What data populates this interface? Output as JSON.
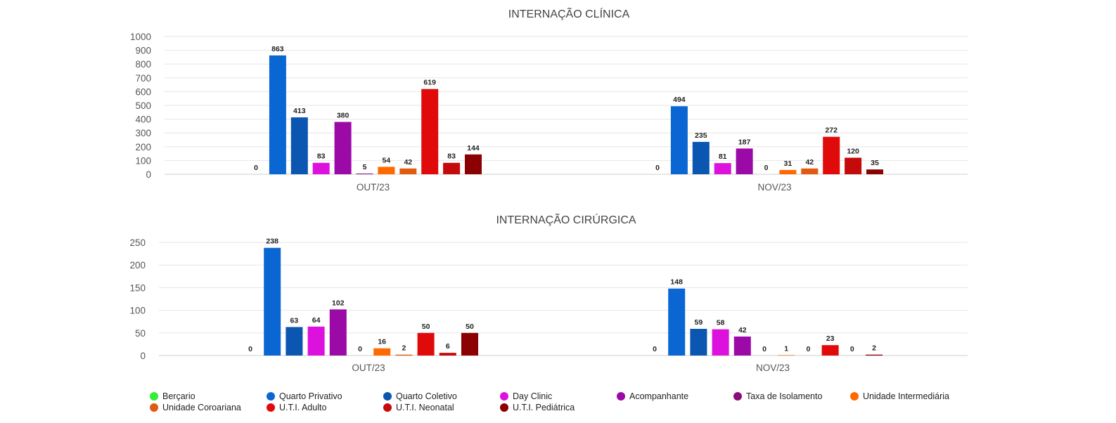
{
  "legend": [
    {
      "label": "Berçario",
      "color": "#33ee33"
    },
    {
      "label": "Quarto Privativo",
      "color": "#0a66d3"
    },
    {
      "label": "Quarto Coletivo",
      "color": "#0a56b0"
    },
    {
      "label": "Day Clinic",
      "color": "#dd11dd"
    },
    {
      "label": "Acompanhante",
      "color": "#9b0aa6"
    },
    {
      "label": "Taxa de Isolamento",
      "color": "#8c0a7a"
    },
    {
      "label": "Unidade Intermediária",
      "color": "#ff6a00"
    },
    {
      "label": "Unidade Coroariana",
      "color": "#e05a10"
    },
    {
      "label": "U.T.I. Adulto",
      "color": "#e00a0a"
    },
    {
      "label": "U.T.I. Neonatal",
      "color": "#c40a0a"
    },
    {
      "label": "U.T.I. Pediátrica",
      "color": "#8b0000"
    }
  ],
  "chart_data": [
    {
      "type": "bar",
      "title": "INTERNAÇÃO CLÍNICA",
      "categories": [
        "OUT/23",
        "NOV/23"
      ],
      "ylim": [
        0,
        1000
      ],
      "yticks": [
        0,
        100,
        200,
        300,
        400,
        500,
        600,
        700,
        800,
        900,
        1000
      ],
      "grid": true,
      "legend_position": "bottom",
      "series": [
        {
          "name": "Berçario",
          "values": [
            0,
            0
          ]
        },
        {
          "name": "Quarto Privativo",
          "values": [
            863,
            494
          ]
        },
        {
          "name": "Quarto Coletivo",
          "values": [
            413,
            235
          ]
        },
        {
          "name": "Day Clinic",
          "values": [
            83,
            81
          ]
        },
        {
          "name": "Acompanhante",
          "values": [
            380,
            187
          ]
        },
        {
          "name": "Taxa de Isolamento",
          "values": [
            5,
            0
          ]
        },
        {
          "name": "Unidade Intermediária",
          "values": [
            54,
            31
          ]
        },
        {
          "name": "Unidade Coroariana",
          "values": [
            42,
            42
          ]
        },
        {
          "name": "U.T.I. Adulto",
          "values": [
            619,
            272
          ]
        },
        {
          "name": "U.T.I. Neonatal",
          "values": [
            83,
            120
          ]
        },
        {
          "name": "U.T.I. Pediátrica",
          "values": [
            144,
            35
          ]
        }
      ]
    },
    {
      "type": "bar",
      "title": "INTERNAÇÃO CIRÚRGICA",
      "categories": [
        "OUT/23",
        "NOV/23"
      ],
      "ylim": [
        0,
        250
      ],
      "yticks": [
        0,
        50,
        100,
        150,
        200,
        250
      ],
      "grid": true,
      "legend_position": "bottom",
      "series": [
        {
          "name": "Berçario",
          "values": [
            0,
            0
          ]
        },
        {
          "name": "Quarto Privativo",
          "values": [
            238,
            148
          ]
        },
        {
          "name": "Quarto Coletivo",
          "values": [
            63,
            59
          ]
        },
        {
          "name": "Day Clinic",
          "values": [
            64,
            58
          ]
        },
        {
          "name": "Acompanhante",
          "values": [
            102,
            42
          ]
        },
        {
          "name": "Taxa de Isolamento",
          "values": [
            0,
            0
          ]
        },
        {
          "name": "Unidade Intermediária",
          "values": [
            16,
            1
          ]
        },
        {
          "name": "Unidade Coroariana",
          "values": [
            2,
            0
          ]
        },
        {
          "name": "U.T.I. Adulto",
          "values": [
            50,
            23
          ]
        },
        {
          "name": "U.T.I. Neonatal",
          "values": [
            6,
            0
          ]
        },
        {
          "name": "U.T.I. Pediátrica",
          "values": [
            50,
            2
          ]
        }
      ]
    }
  ]
}
